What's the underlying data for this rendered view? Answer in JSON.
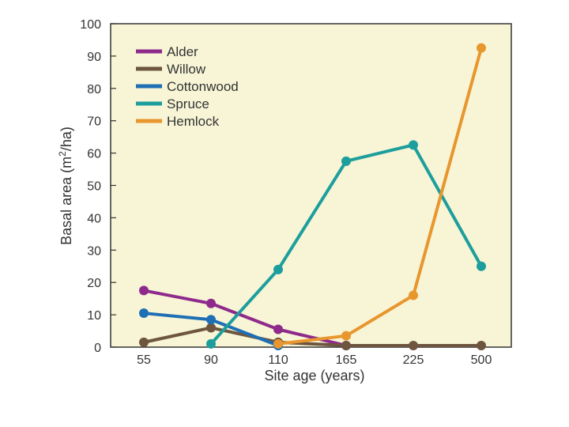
{
  "chart_data": {
    "type": "line",
    "title": "",
    "xlabel": "Site age (years)",
    "ylabel": "Basal area (m",
    "ylabel_sup": "2",
    "ylabel_suffix": "/ha)",
    "categories": [
      "55",
      "90",
      "110",
      "165",
      "225",
      "500"
    ],
    "ylim": [
      0,
      100
    ],
    "yticks": [
      "0",
      "10",
      "20",
      "30",
      "40",
      "50",
      "60",
      "70",
      "80",
      "90",
      "100"
    ],
    "grid": false,
    "legend": "top-left",
    "background": "#f7f5d6",
    "series": [
      {
        "name": "Alder",
        "color": "#8e2a8c",
        "values": [
          17.5,
          13.5,
          5.5,
          0.5,
          null,
          null
        ]
      },
      {
        "name": "Willow",
        "color": "#6e5540",
        "values": [
          1.5,
          6,
          1.5,
          0.5,
          0.5,
          0.5
        ]
      },
      {
        "name": "Cottonwood",
        "color": "#1f6fb5",
        "values": [
          10.5,
          8.5,
          0.5,
          null,
          null,
          null
        ]
      },
      {
        "name": "Spruce",
        "color": "#1d9e9c",
        "values": [
          null,
          1,
          24,
          57.5,
          62.5,
          25
        ]
      },
      {
        "name": "Hemlock",
        "color": "#e8962e",
        "values": [
          null,
          null,
          1,
          3.5,
          16,
          92.5
        ]
      }
    ]
  }
}
